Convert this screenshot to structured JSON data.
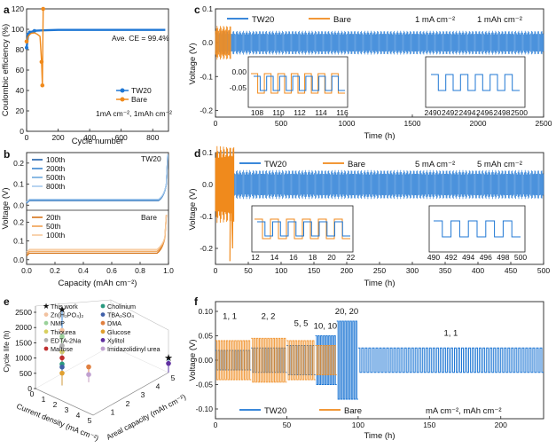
{
  "colors": {
    "tw20": "#1f77d4",
    "bare": "#f08a1c",
    "tw20_light": "#7fb3e6",
    "bare_light": "#f6b977"
  },
  "panels": {
    "a": {
      "letter": "a",
      "chart_data": {
        "type": "scatter",
        "xlabel": "Cycle number",
        "ylabel": "Coulombic efficiency (%)",
        "xlim": [
          0,
          900
        ],
        "ylim": [
          0,
          120
        ],
        "xticks": [
          "0",
          "200",
          "400",
          "600",
          "800"
        ],
        "yticks": [
          "0",
          "20",
          "40",
          "60",
          "80",
          "100",
          "120"
        ],
        "annotation": "Ave. CE = 99.4%",
        "condition": "1mA cm⁻², 1mAh cm⁻²",
        "series": [
          {
            "name": "TW20",
            "x": [
              0,
              10,
              20,
              50,
              100,
              200,
              300,
              400,
              500,
              600,
              700,
              800,
              880
            ],
            "y": [
              82,
              95,
              97,
              98.5,
              99,
              99.4,
              99.4,
              99.4,
              99.4,
              99.4,
              99.4,
              99.4,
              99.4
            ]
          },
          {
            "name": "Bare",
            "x": [
              0,
              10,
              20,
              30,
              50,
              70,
              85,
              95,
              100,
              105
            ],
            "y": [
              88,
              93,
              95,
              96,
              96.5,
              95,
              93,
              68,
              45,
              120
            ]
          }
        ]
      }
    },
    "b": {
      "letter": "b",
      "chart_data": {
        "type": "line",
        "xlabel": "Capacity (mAh cm⁻²)",
        "ylabel": "Voltage (V)",
        "xlim": [
          0,
          1.0
        ],
        "xticks": [
          "0.0",
          "0.2",
          "0.4",
          "0.6",
          "0.8",
          "1.0"
        ],
        "yticks_top": [
          "0.0",
          "0.1",
          "0.2"
        ],
        "yticks_bottom": [
          "0.0",
          "0.1",
          "0.2"
        ],
        "top_label": "TW20",
        "bottom_label": "Bare",
        "series_top": [
          {
            "name": "100th",
            "plateau": 0.022
          },
          {
            "name": "200th",
            "plateau": 0.024
          },
          {
            "name": "500th",
            "plateau": 0.026
          },
          {
            "name": "800th",
            "plateau": 0.028
          }
        ],
        "series_bottom": [
          {
            "name": "20th",
            "plateau": 0.035
          },
          {
            "name": "50th",
            "plateau": 0.045
          },
          {
            "name": "100th",
            "plateau": 0.055
          }
        ]
      }
    },
    "c": {
      "letter": "c",
      "chart_data": {
        "type": "line",
        "xlabel": "Time (h)",
        "ylabel": "Voltage (V)",
        "xlim": [
          0,
          2500
        ],
        "ylim": [
          -0.22,
          0.1
        ],
        "xticks": [
          "0",
          "500",
          "1000",
          "1500",
          "2000",
          "2500"
        ],
        "yticks": [
          "0.1",
          "0.0",
          "-0.1",
          "-0.2"
        ],
        "condition_current": "1 mA cm⁻²",
        "condition_capacity": "1 mAh cm⁻²",
        "series": [
          {
            "name": "TW20",
            "amplitude": 0.035,
            "end_h": 2500
          },
          {
            "name": "Bare",
            "amplitude": 0.05,
            "end_h": 120
          }
        ],
        "inset1_xticks": [
          "108",
          "110",
          "112",
          "114",
          "116"
        ],
        "inset1_yticks": [
          "0.00",
          "-0.05"
        ],
        "inset2_xticks": [
          "2490",
          "2492",
          "2494",
          "2496",
          "2498",
          "2500"
        ]
      }
    },
    "d": {
      "letter": "d",
      "chart_data": {
        "type": "line",
        "xlabel": "Time (h)",
        "ylabel": "Voltage (V)",
        "xlim": [
          0,
          500
        ],
        "ylim": [
          -0.25,
          0.1
        ],
        "xticks": [
          "0",
          "50",
          "100",
          "150",
          "200",
          "250",
          "300",
          "350",
          "400",
          "450",
          "500"
        ],
        "yticks": [
          "0.1",
          "0.0",
          "-0.1",
          "-0.2"
        ],
        "condition_current": "5 mA cm⁻²",
        "condition_capacity": "5 mAh cm⁻²",
        "series": [
          {
            "name": "TW20",
            "amplitude": 0.045,
            "end_h": 500
          },
          {
            "name": "Bare",
            "amplitude": 0.12,
            "end_h": 28
          }
        ],
        "inset1_xticks": [
          "12",
          "14",
          "16",
          "18",
          "20",
          "22"
        ],
        "inset2_xticks": [
          "490",
          "492",
          "494",
          "496",
          "498",
          "500"
        ]
      }
    },
    "e": {
      "letter": "e",
      "chart_data": {
        "type": "scatter",
        "xlabel": "Current density (mA cm⁻²)",
        "ylabel": "Cycle life (h)",
        "zlabel": "Areal capacity (mAh cm⁻²)",
        "yticks": [
          "0",
          "500",
          "1000",
          "1500",
          "2000",
          "2500"
        ],
        "xticks": [
          "0",
          "1",
          "2",
          "3",
          "4",
          "5"
        ],
        "zticks": [
          "1",
          "2",
          "3",
          "4",
          "5"
        ],
        "legend": [
          {
            "name": "This work",
            "color": "#1f77d4",
            "marker": "star"
          },
          {
            "name": "Zn(H₂PO₄)₂",
            "color": "#f2c2a0",
            "marker": "circle"
          },
          {
            "name": "NMP",
            "color": "#9ad19a",
            "marker": "circle"
          },
          {
            "name": "Thiourea",
            "color": "#d8d060",
            "marker": "circle"
          },
          {
            "name": "EDTA-2Na",
            "color": "#b0b0b0",
            "marker": "circle"
          },
          {
            "name": "Maltose",
            "color": "#c03030",
            "marker": "circle"
          },
          {
            "name": "Cholinium",
            "color": "#2a9a80",
            "marker": "circle"
          },
          {
            "name": "TBA₂SO₄",
            "color": "#4060a8",
            "marker": "circle"
          },
          {
            "name": "DMA",
            "color": "#e08040",
            "marker": "circle"
          },
          {
            "name": "Glucose",
            "color": "#e0a030",
            "marker": "circle"
          },
          {
            "name": "Xylitol",
            "color": "#6030a0",
            "marker": "circle"
          },
          {
            "name": "Imidazolidinyl urea",
            "color": "#c0a0d0",
            "marker": "circle"
          }
        ],
        "points": [
          {
            "series": "This work",
            "current": 1,
            "capacity": 1,
            "life": 2500
          },
          {
            "series": "This work",
            "current": 5,
            "capacity": 5,
            "life": 500
          },
          {
            "series": "Zn(H₂PO₄)₂",
            "current": 1,
            "capacity": 1,
            "life": 1800
          },
          {
            "series": "NMP",
            "current": 1,
            "capacity": 1,
            "life": 1600
          },
          {
            "series": "Thiourea",
            "current": 1,
            "capacity": 1,
            "life": 1100
          },
          {
            "series": "EDTA-2Na",
            "current": 1,
            "capacity": 1,
            "life": 1300
          },
          {
            "series": "Maltose",
            "current": 1,
            "capacity": 1,
            "life": 900
          },
          {
            "series": "Cholinium",
            "current": 1,
            "capacity": 1,
            "life": 700
          },
          {
            "series": "TBA₂SO₄",
            "current": 1,
            "capacity": 1,
            "life": 600
          },
          {
            "series": "DMA",
            "current": 2,
            "capacity": 2,
            "life": 500
          },
          {
            "series": "Glucose",
            "current": 1,
            "capacity": 1,
            "life": 400
          },
          {
            "series": "Xylitol",
            "current": 5,
            "capacity": 5,
            "life": 300
          },
          {
            "series": "Imidazolidinyl urea",
            "current": 2,
            "capacity": 2,
            "life": 250
          }
        ]
      }
    },
    "f": {
      "letter": "f",
      "chart_data": {
        "type": "line",
        "xlabel": "Time (h)",
        "ylabel": "Voltage (V)",
        "xlim": [
          0,
          230
        ],
        "ylim": [
          -0.12,
          0.12
        ],
        "xticks": [
          "0",
          "50",
          "100",
          "150",
          "200"
        ],
        "yticks": [
          "0.10",
          "0.05",
          "0.00",
          "-0.05",
          "-0.10"
        ],
        "rate_labels": [
          "1, 1",
          "2, 2",
          "5, 5",
          "10, 10",
          "20, 20",
          "1, 1"
        ],
        "units": "mA cm⁻², mAh cm⁻²",
        "segments": [
          {
            "label": "1, 1",
            "start": 0,
            "end": 25,
            "tw20_amp": 0.02,
            "bare_amp": 0.04
          },
          {
            "label": "2, 2",
            "start": 25,
            "end": 50,
            "tw20_amp": 0.025,
            "bare_amp": 0.045
          },
          {
            "label": "5, 5",
            "start": 50,
            "end": 70,
            "tw20_amp": 0.03,
            "bare_amp": 0.04
          },
          {
            "label": "10, 10",
            "start": 70,
            "end": 85,
            "tw20_amp": 0.05,
            "bare_amp": 0.03
          },
          {
            "label": "20, 20",
            "start": 85,
            "end": 100,
            "tw20_amp": 0.08,
            "bare_amp": 0
          },
          {
            "label": "1, 1",
            "start": 100,
            "end": 230,
            "tw20_amp": 0.025,
            "bare_amp": 0
          }
        ],
        "series": [
          {
            "name": "TW20"
          },
          {
            "name": "Bare"
          }
        ]
      }
    }
  }
}
